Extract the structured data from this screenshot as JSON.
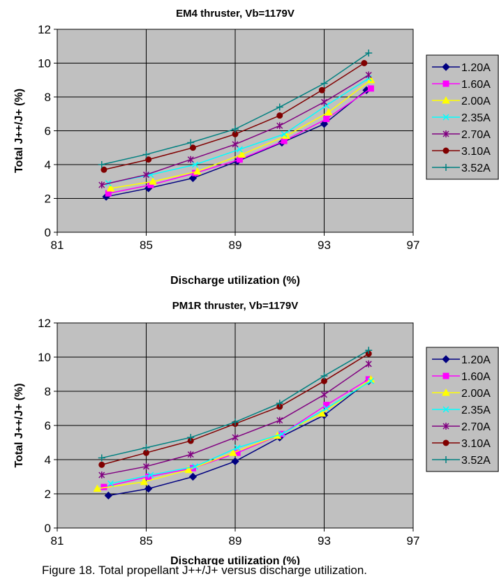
{
  "chart_data": [
    {
      "type": "line",
      "title": "EM4 thruster, Vb=1179V",
      "xlabel": "Discharge utilization (%)",
      "ylabel": "Total J++/J+ (%)",
      "xlim": [
        81,
        97
      ],
      "ylim": [
        0,
        12
      ],
      "xticks": [
        "81",
        "85",
        "89",
        "93",
        "97"
      ],
      "yticks": [
        "0",
        "2",
        "4",
        "6",
        "8",
        "10",
        "12"
      ],
      "grid": true,
      "plot_background": "#c0c0c0",
      "legend_position": "right",
      "series": [
        {
          "name": "1.20A",
          "color": "#000080",
          "marker": "diamond",
          "x": [
            83.2,
            85.1,
            87.1,
            89.1,
            91.1,
            93.0,
            94.9
          ],
          "y": [
            2.1,
            2.6,
            3.2,
            4.2,
            5.3,
            6.4,
            8.4
          ]
        },
        {
          "name": "1.60A",
          "color": "#ff00ff",
          "marker": "square",
          "x": [
            83.3,
            85.2,
            87.2,
            89.2,
            91.2,
            93.1,
            95.1
          ],
          "y": [
            2.3,
            2.8,
            3.5,
            4.3,
            5.4,
            6.7,
            8.5
          ]
        },
        {
          "name": "2.00A",
          "color": "#ffff00",
          "marker": "triangle",
          "x": [
            83.4,
            85.3,
            87.3,
            89.3,
            91.3,
            93.2,
            95.1
          ],
          "y": [
            2.6,
            3.0,
            3.6,
            4.6,
            5.7,
            7.1,
            9.0
          ]
        },
        {
          "name": "2.35A",
          "color": "#00ffff",
          "marker": "x",
          "x": [
            83.3,
            85.2,
            87.2,
            89.2,
            91.2,
            93.1,
            95.0
          ],
          "y": [
            2.9,
            3.4,
            4.0,
            4.9,
            5.8,
            7.5,
            9.1
          ]
        },
        {
          "name": "2.70A",
          "color": "#800080",
          "marker": "star",
          "x": [
            83.0,
            85.0,
            87.0,
            89.0,
            91.0,
            93.0,
            95.0
          ],
          "y": [
            2.8,
            3.4,
            4.3,
            5.2,
            6.3,
            7.7,
            9.3
          ]
        },
        {
          "name": "3.10A",
          "color": "#800000",
          "marker": "circle",
          "x": [
            83.1,
            85.1,
            87.1,
            89.0,
            91.0,
            92.9,
            94.8
          ],
          "y": [
            3.7,
            4.3,
            5.0,
            5.8,
            6.9,
            8.4,
            10.0
          ]
        },
        {
          "name": "3.52A",
          "color": "#008080",
          "marker": "plus",
          "x": [
            83.0,
            85.0,
            87.0,
            89.0,
            91.0,
            93.0,
            95.0
          ],
          "y": [
            4.0,
            4.6,
            5.3,
            6.1,
            7.4,
            8.8,
            10.6
          ]
        }
      ]
    },
    {
      "type": "line",
      "title": "PM1R thruster, Vb=1179V",
      "xlabel": "Discharge utilization (%)",
      "ylabel": "Total J++/J+ (%)",
      "xlim": [
        81,
        97
      ],
      "ylim": [
        0,
        12
      ],
      "xticks": [
        "81",
        "85",
        "89",
        "93",
        "97"
      ],
      "yticks": [
        "0",
        "2",
        "4",
        "6",
        "8",
        "10",
        "12"
      ],
      "grid": true,
      "plot_background": "#c0c0c0",
      "legend_position": "right",
      "series": [
        {
          "name": "1.20A",
          "color": "#000080",
          "marker": "diamond",
          "x": [
            83.3,
            85.1,
            87.1,
            89.0,
            91.0,
            93.0,
            95.0
          ],
          "y": [
            1.9,
            2.3,
            3.0,
            3.9,
            5.3,
            6.6,
            8.6
          ]
        },
        {
          "name": "1.60A",
          "color": "#ff00ff",
          "marker": "square",
          "x": [
            83.1,
            85.1,
            87.1,
            89.1,
            91.1,
            93.1,
            95.0
          ],
          "y": [
            2.4,
            3.0,
            3.5,
            4.4,
            5.5,
            7.2,
            8.7
          ]
        },
        {
          "name": "2.00A",
          "color": "#ffff00",
          "marker": "triangle",
          "x": [
            82.8,
            84.9,
            86.9,
            88.9,
            90.9,
            92.9,
            95.1
          ],
          "y": [
            2.3,
            2.7,
            3.4,
            4.4,
            5.4,
            6.7,
            8.7
          ]
        },
        {
          "name": "2.35A",
          "color": "#00ffff",
          "marker": "x",
          "x": [
            83.4,
            85.2,
            87.2,
            89.1,
            91.1,
            93.1,
            95.1
          ],
          "y": [
            2.6,
            3.1,
            3.6,
            4.7,
            5.5,
            7.0,
            8.6
          ]
        },
        {
          "name": "2.70A",
          "color": "#800080",
          "marker": "star",
          "x": [
            83.0,
            85.0,
            87.0,
            89.0,
            91.0,
            93.0,
            95.0
          ],
          "y": [
            3.1,
            3.6,
            4.3,
            5.3,
            6.3,
            7.8,
            9.6
          ]
        },
        {
          "name": "3.10A",
          "color": "#800000",
          "marker": "circle",
          "x": [
            83.0,
            85.0,
            87.0,
            89.0,
            91.0,
            93.0,
            95.0
          ],
          "y": [
            3.7,
            4.4,
            5.1,
            6.1,
            7.1,
            8.6,
            10.2
          ]
        },
        {
          "name": "3.52A",
          "color": "#008080",
          "marker": "plus",
          "x": [
            83.0,
            85.0,
            87.0,
            89.0,
            91.0,
            93.0,
            95.0
          ],
          "y": [
            4.1,
            4.7,
            5.3,
            6.2,
            7.3,
            8.9,
            10.4
          ]
        }
      ]
    }
  ],
  "caption": "Figure 18.   Total propellant J++/J+ versus discharge utilization."
}
